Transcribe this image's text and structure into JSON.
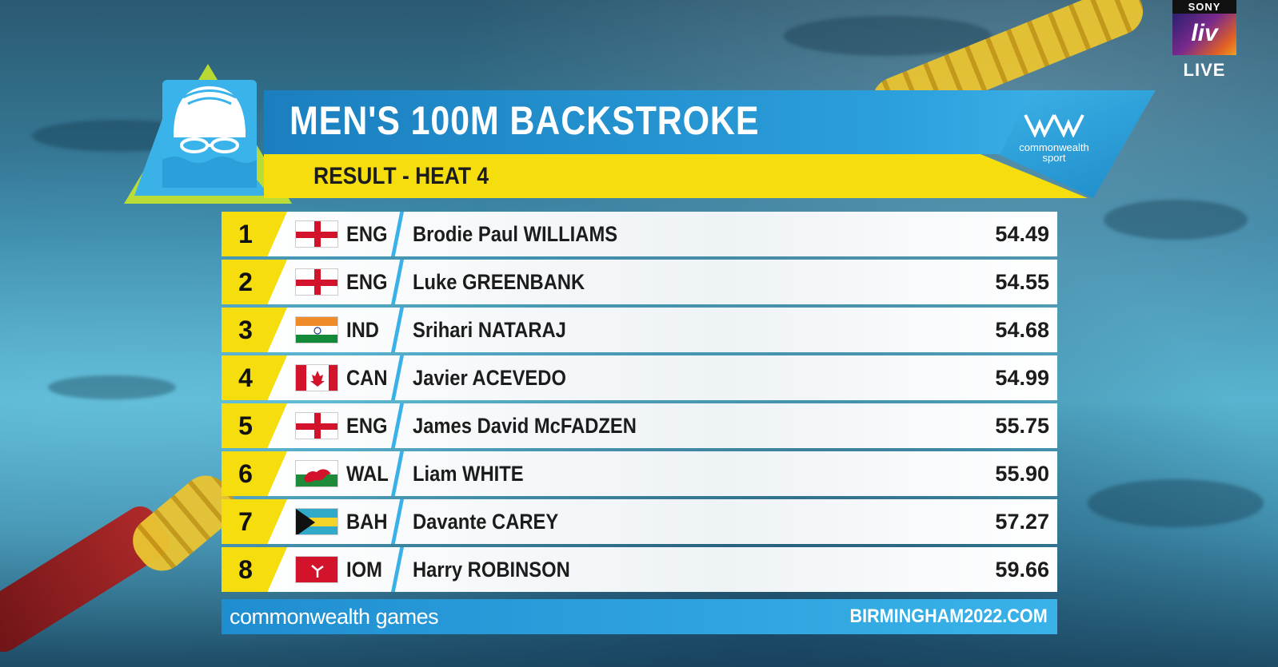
{
  "broadcaster": {
    "brand_top": "SONY",
    "brand_main": "liv",
    "live_label": "LIVE"
  },
  "header": {
    "title": "MEN'S 100M BACKSTROKE",
    "subtitle": "RESULT - HEAT 4",
    "org_logo_line1": "commonwealth",
    "org_logo_line2": "sport"
  },
  "results": [
    {
      "rank": "1",
      "country": "ENG",
      "flag": "england-flag-icon",
      "name": "Brodie Paul WILLIAMS",
      "time": "54.49"
    },
    {
      "rank": "2",
      "country": "ENG",
      "flag": "england-flag-icon",
      "name": "Luke GREENBANK",
      "time": "54.55"
    },
    {
      "rank": "3",
      "country": "IND",
      "flag": "india-flag-icon",
      "name": "Srihari NATARAJ",
      "time": "54.68"
    },
    {
      "rank": "4",
      "country": "CAN",
      "flag": "canada-flag-icon",
      "name": "Javier ACEVEDO",
      "time": "54.99"
    },
    {
      "rank": "5",
      "country": "ENG",
      "flag": "england-flag-icon",
      "name": "James David McFADZEN",
      "time": "55.75"
    },
    {
      "rank": "6",
      "country": "WAL",
      "flag": "wales-flag-icon",
      "name": "Liam WHITE",
      "time": "55.90"
    },
    {
      "rank": "7",
      "country": "BAH",
      "flag": "bahamas-flag-icon",
      "name": "Davante CAREY",
      "time": "57.27"
    },
    {
      "rank": "8",
      "country": "IOM",
      "flag": "isle-of-man-flag-icon",
      "name": "Harry ROBINSON",
      "time": "59.66"
    }
  ],
  "footer": {
    "left": "commonwealth games",
    "right": "BIRMINGHAM2022.COM"
  },
  "colors": {
    "header_blue": "#2b9fdb",
    "accent_yellow": "#f6dd0d",
    "slash_blue": "#3ab2e8"
  }
}
